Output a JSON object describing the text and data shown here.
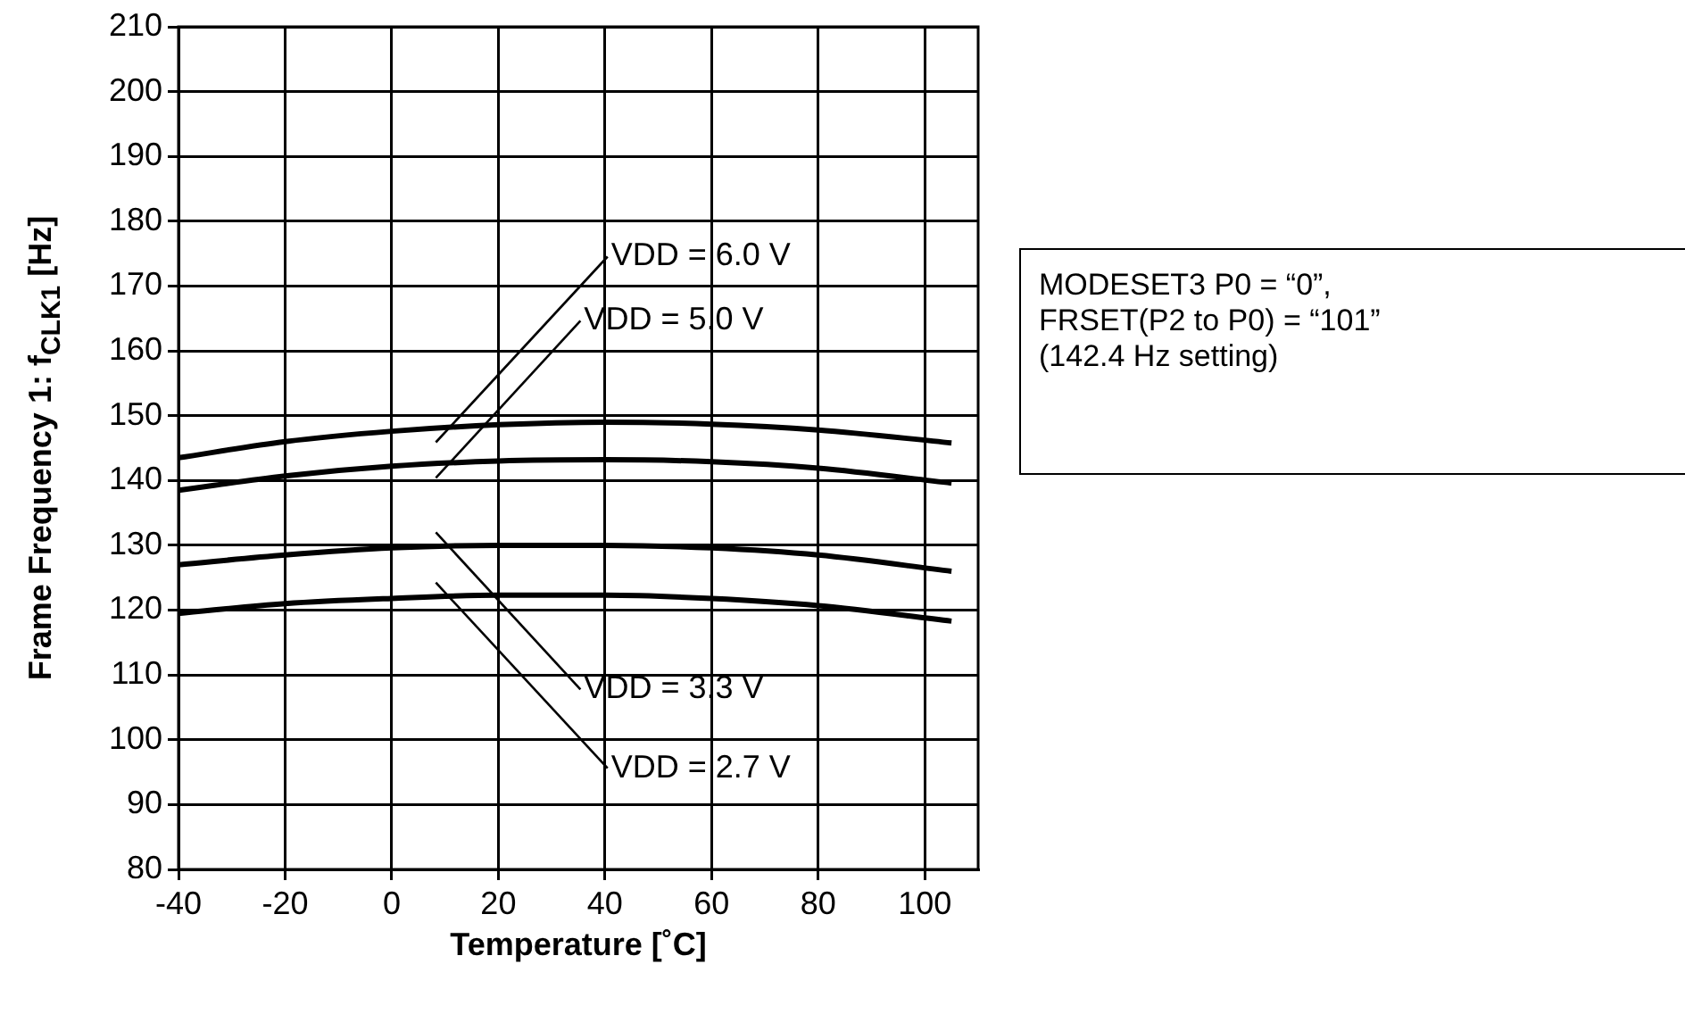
{
  "chart_data": {
    "type": "line",
    "xlabel": "Temperature [˚C]",
    "ylabel": "Frame Frequency 1: f$_{CLK1}$ [Hz]",
    "x": [
      -40,
      -20,
      0,
      20,
      40,
      60,
      80,
      105
    ],
    "series": [
      {
        "name": "VDD = 6.0 V",
        "color": "#000000",
        "values": [
          143.5,
          146,
          147.6,
          148.6,
          149,
          148.7,
          147.8,
          145.8
        ]
      },
      {
        "name": "VDD = 5.0 V",
        "color": "#000000",
        "values": [
          138.5,
          140.7,
          142.2,
          143,
          143.2,
          142.9,
          141.9,
          139.6
        ]
      },
      {
        "name": "VDD = 3.3 V",
        "color": "#000000",
        "values": [
          127,
          128.5,
          129.6,
          130,
          130,
          129.6,
          128.5,
          126
        ]
      },
      {
        "name": "VDD = 2.7 V",
        "color": "#000000",
        "values": [
          119.5,
          121,
          121.8,
          122.3,
          122.3,
          121.8,
          120.7,
          118.3
        ]
      }
    ],
    "xlim": [
      -40,
      110
    ],
    "xticks": [
      -40,
      -20,
      0,
      20,
      40,
      60,
      80,
      100
    ],
    "ylim": [
      80,
      210
    ],
    "yticks": [
      80,
      90,
      100,
      110,
      120,
      130,
      140,
      150,
      160,
      170,
      180,
      190,
      200,
      210
    ],
    "grid": true,
    "legend": false,
    "marker": "none",
    "line_style": "solid",
    "annotations": [
      "MODESET3 P0 = “0”,\nFRSET(P2 to P0) = “101”\n(142.4 Hz setting)"
    ]
  }
}
